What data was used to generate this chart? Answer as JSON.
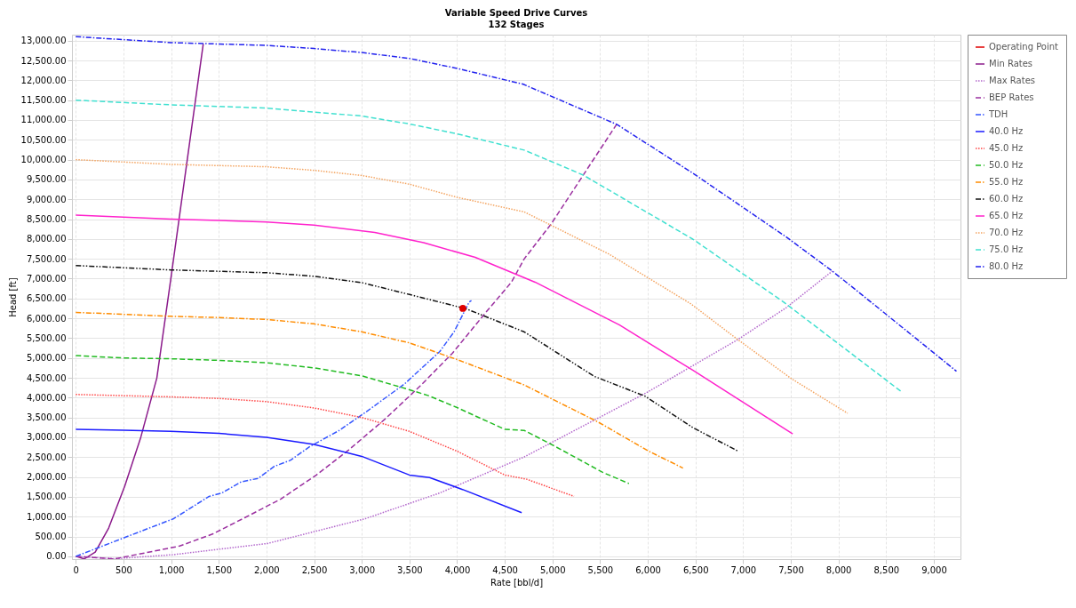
{
  "chart_data": {
    "type": "line",
    "title": "Variable Speed Drive Curves",
    "subtitle": "132 Stages",
    "xlabel": "Rate [bbl/d]",
    "ylabel": "Head [ft]",
    "xlim": [
      -40,
      9280
    ],
    "ylim": [
      -70,
      13150
    ],
    "xticks": [
      0,
      {
        "value": 500,
        "label": "500"
      },
      {
        "value": 1000,
        "label": "1,000"
      },
      {
        "value": 1500,
        "label": "1,500"
      },
      {
        "value": 2000,
        "label": "2,000"
      },
      {
        "value": 2500,
        "label": "2,500"
      },
      {
        "value": 3000,
        "label": "3,000"
      },
      {
        "value": 3500,
        "label": "3,500"
      },
      {
        "value": 4000,
        "label": "4,000"
      },
      {
        "value": 4500,
        "label": "4,500"
      },
      {
        "value": 5000,
        "label": "5,000"
      },
      {
        "value": 5500,
        "label": "5,500"
      },
      {
        "value": 6000,
        "label": "6,000"
      },
      {
        "value": 6500,
        "label": "6,500"
      },
      {
        "value": 7000,
        "label": "7,000"
      },
      {
        "value": 7500,
        "label": "7,500"
      },
      {
        "value": 8000,
        "label": "8,000"
      },
      {
        "value": 8500,
        "label": "8,500"
      },
      {
        "value": 9000,
        "label": "9,000"
      }
    ],
    "yticks": [
      {
        "value": 0,
        "label": "0.00"
      },
      {
        "value": 500,
        "label": "500.00"
      },
      {
        "value": 1000,
        "label": "1,000.00"
      },
      {
        "value": 1500,
        "label": "1,500.00"
      },
      {
        "value": 2000,
        "label": "2,000.00"
      },
      {
        "value": 2500,
        "label": "2,500.00"
      },
      {
        "value": 3000,
        "label": "3,000.00"
      },
      {
        "value": 3500,
        "label": "3,500.00"
      },
      {
        "value": 4000,
        "label": "4,000.00"
      },
      {
        "value": 4500,
        "label": "4,500.00"
      },
      {
        "value": 5000,
        "label": "5,000.00"
      },
      {
        "value": 5500,
        "label": "5,500.00"
      },
      {
        "value": 6000,
        "label": "6,000.00"
      },
      {
        "value": 6500,
        "label": "6,500.00"
      },
      {
        "value": 7000,
        "label": "7,000.00"
      },
      {
        "value": 7500,
        "label": "7,500.00"
      },
      {
        "value": 8000,
        "label": "8,000.00"
      },
      {
        "value": 8500,
        "label": "8,500.00"
      },
      {
        "value": 9000,
        "label": "9,000.00"
      },
      {
        "value": 9500,
        "label": "9,500.00"
      },
      {
        "value": 10000,
        "label": "10,000.00"
      },
      {
        "value": 10500,
        "label": "10,500.00"
      },
      {
        "value": 11000,
        "label": "11,000.00"
      },
      {
        "value": 11500,
        "label": "11,500.00"
      },
      {
        "value": 12000,
        "label": "12,000.00"
      },
      {
        "value": 12500,
        "label": "12,500.00"
      },
      {
        "value": 13000,
        "label": "13,000.00"
      }
    ],
    "grid": true,
    "legend": "right",
    "series": [
      {
        "name": "Operating Point",
        "type": "scatter",
        "marker": "circle",
        "color": "#e00000",
        "x": [
          4060
        ],
        "values": [
          6250
        ]
      },
      {
        "name": "Min Rates",
        "color": "#8b1a8b",
        "line_style": "solid",
        "x": [
          0,
          89,
          204,
          345,
          514,
          682,
          850,
          992,
          1337
        ],
        "values": [
          0,
          -65,
          108,
          713,
          1771,
          3002,
          4492,
          6911,
          12916
        ]
      },
      {
        "name": "Max Rates",
        "color": "#b266cc",
        "line_style": "dotted",
        "x": [
          0,
          407,
          1027,
          2011,
          3038,
          3818,
          4703,
          5970,
          6944,
          7449,
          7936
        ],
        "values": [
          0,
          -60,
          43,
          324,
          950,
          1598,
          2505,
          4104,
          5464,
          6263,
          7190
        ]
      },
      {
        "name": "BEP Rates",
        "color": "#9b30a0",
        "line_style": "dashed",
        "x": [
          0,
          407,
          1089,
          1435,
          1771,
          2152,
          2524,
          2861,
          3242,
          3614,
          3950,
          4296,
          4570,
          4703,
          4987,
          5323,
          5678
        ],
        "values": [
          0,
          -65,
          259,
          562,
          972,
          1447,
          2052,
          2678,
          3456,
          4298,
          5119,
          6134,
          6911,
          7495,
          8380,
          9611,
          10907
        ]
      },
      {
        "name": "TDH",
        "color": "#3355ff",
        "line_style": "dashdot",
        "x": [
          0,
          1027,
          1399,
          1532,
          1736,
          1913,
          2082,
          2250,
          2454,
          2764,
          3038,
          3446,
          3818,
          3968,
          4127,
          4150
        ],
        "values": [
          0,
          950,
          1512,
          1598,
          1879,
          1965,
          2268,
          2419,
          2765,
          3175,
          3629,
          4341,
          5162,
          5659,
          6415,
          6450
        ]
      },
      {
        "name": "40.0 Hz",
        "color": "#1a1aff",
        "line_style": "solid",
        "x": [
          0,
          500,
          1000,
          1500,
          2000,
          2500,
          3000,
          3500,
          3711,
          4057,
          4677
        ],
        "values": [
          3200,
          3180,
          3150,
          3100,
          3000,
          2820,
          2520,
          2050,
          1987,
          1685,
          1101
        ]
      },
      {
        "name": "45.0 Hz",
        "color": "#ff4444",
        "line_style": "dotted",
        "x": [
          0,
          1000,
          1500,
          2000,
          2500,
          3000,
          3500,
          4000,
          4500,
          4730,
          5226
        ],
        "values": [
          4080,
          4020,
          3980,
          3900,
          3740,
          3500,
          3150,
          2650,
          2050,
          1944,
          1512
        ]
      },
      {
        "name": "50.0 Hz",
        "color": "#22bb22",
        "line_style": "dashed",
        "x": [
          0,
          500,
          1000,
          1500,
          2000,
          2500,
          3000,
          3500,
          3700,
          4000,
          4500,
          4703,
          5000,
          5527,
          5802
        ],
        "values": [
          5060,
          5000,
          4980,
          4940,
          4880,
          4750,
          4550,
          4200,
          4050,
          3750,
          3200,
          3175,
          2808,
          2117,
          1836
        ]
      },
      {
        "name": "55.0 Hz",
        "color": "#ff8c00",
        "line_style": "dashdot",
        "x": [
          0,
          1000,
          1500,
          2000,
          2500,
          3000,
          3500,
          4000,
          4703,
          5474,
          6005,
          6369
        ],
        "values": [
          6150,
          6050,
          6020,
          5970,
          5860,
          5660,
          5380,
          4960,
          4320,
          3391,
          2657,
          2225
        ]
      },
      {
        "name": "60.0 Hz",
        "color": "#111111",
        "line_style": "dashdotdot",
        "x": [
          0,
          1000,
          2000,
          2500,
          3000,
          3500,
          4092,
          4703,
          5439,
          5970,
          6475,
          6944
        ],
        "values": [
          7330,
          7220,
          7150,
          7060,
          6900,
          6600,
          6242,
          5659,
          4536,
          4039,
          3240,
          2657
        ]
      },
      {
        "name": "65.0 Hz",
        "color": "#ff22cc",
        "line_style": "solid",
        "x": [
          0,
          1000,
          2000,
          2500,
          3136,
          3649,
          4190,
          4818,
          5704,
          6475,
          6829,
          7520
        ],
        "values": [
          8600,
          8500,
          8430,
          8350,
          8164,
          7905,
          7538,
          6911,
          5832,
          4687,
          4147,
          3089
        ]
      },
      {
        "name": "70.0 Hz",
        "color": "#f4a460",
        "line_style": "dotted",
        "x": [
          0,
          1000,
          2000,
          2500,
          3000,
          3500,
          4000,
          4704,
          5589,
          6448,
          6944,
          7511,
          8096
        ],
        "values": [
          10000,
          9880,
          9820,
          9730,
          9600,
          9380,
          9050,
          8682,
          7624,
          6371,
          5464,
          4471,
          3607
        ]
      },
      {
        "name": "75.0 Hz",
        "color": "#40e0d0",
        "line_style": "dashed",
        "x": [
          0,
          1000,
          2000,
          2500,
          3000,
          3500,
          4000,
          4704,
          5323,
          6475,
          7422,
          8662
        ],
        "values": [
          11500,
          11380,
          11300,
          11200,
          11100,
          10900,
          10650,
          10240,
          9611,
          7991,
          6415,
          4147
        ]
      },
      {
        "name": "80.0 Hz",
        "color": "#2222ee",
        "line_style": "dashdot",
        "x": [
          0,
          1000,
          2000,
          2500,
          3000,
          3500,
          4000,
          4694,
          5678,
          6475,
          7449,
          7936,
          8361,
          9238
        ],
        "values": [
          13100,
          12950,
          12880,
          12800,
          12700,
          12550,
          12300,
          11900,
          10885,
          9654,
          8056,
          7190,
          6371,
          4665
        ]
      }
    ]
  }
}
